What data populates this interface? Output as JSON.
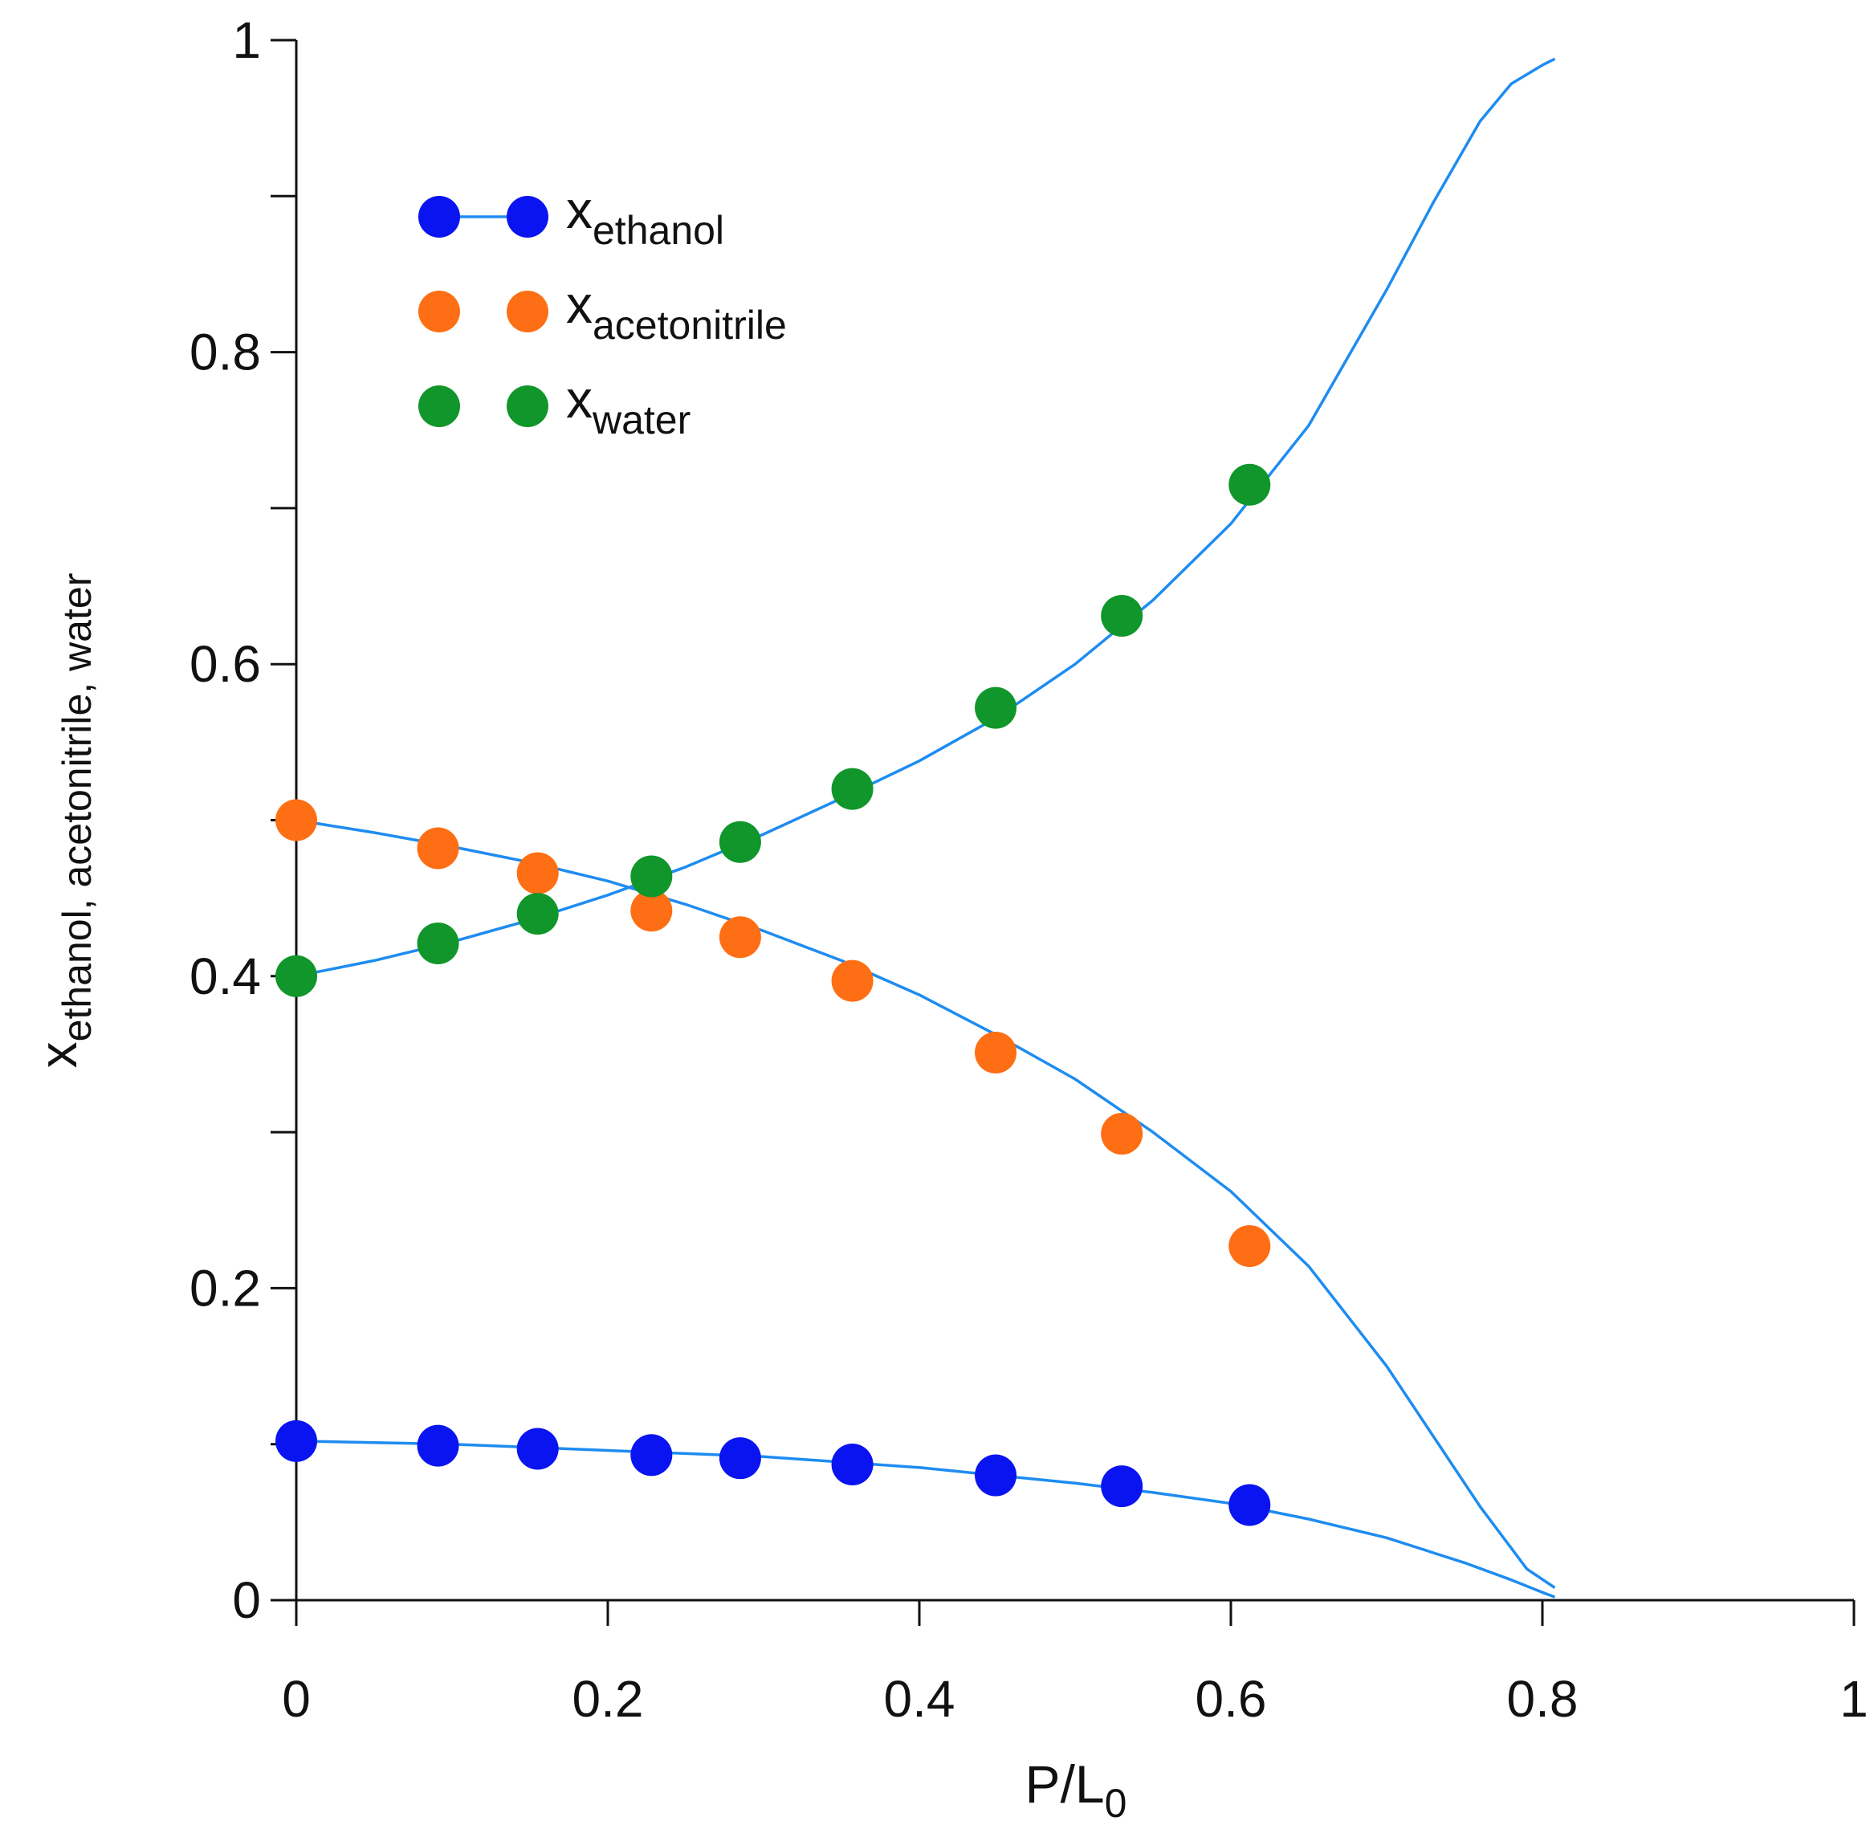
{
  "chart_data": {
    "type": "scatter",
    "title": "",
    "xlabel": {
      "main": "P/L",
      "sub": "0"
    },
    "ylabel": {
      "main": "x",
      "sub": "ethanol, acetonitrile, water"
    },
    "xlim": [
      0,
      1
    ],
    "ylim": [
      0,
      1
    ],
    "x_ticks": [
      0,
      0.2,
      0.4,
      0.6,
      0.8,
      1
    ],
    "x_tick_labels": [
      "0",
      "0.2",
      "0.4",
      "0.6",
      "0.8",
      "1"
    ],
    "y_ticks": [
      0,
      0.1,
      0.2,
      0.3,
      0.4,
      0.5,
      0.6,
      0.7,
      0.8,
      0.9,
      1
    ],
    "y_tick_labels": [
      "0",
      "",
      "0.2",
      "",
      "0.4",
      "",
      "0.6",
      "",
      "0.8",
      "",
      "1"
    ],
    "grid": false,
    "legend_position": "top-left",
    "series": [
      {
        "name": "ethanol",
        "legend_main": "x",
        "legend_sub": "ethanol",
        "color": "#0a14f0",
        "legend_shows_line": true,
        "x": [
          0,
          0.091,
          0.155,
          0.228,
          0.285,
          0.357,
          0.449,
          0.53,
          0.612
        ],
        "y": [
          0.102,
          0.099,
          0.097,
          0.093,
          0.091,
          0.087,
          0.08,
          0.073,
          0.061
        ]
      },
      {
        "name": "acetonitrile",
        "legend_main": "x",
        "legend_sub": "acetonitrile",
        "color": "#fe6e14",
        "legend_shows_line": false,
        "x": [
          0,
          0.091,
          0.155,
          0.228,
          0.285,
          0.357,
          0.449,
          0.53,
          0.612
        ],
        "y": [
          0.5,
          0.482,
          0.466,
          0.442,
          0.425,
          0.397,
          0.351,
          0.299,
          0.227
        ]
      },
      {
        "name": "water",
        "legend_main": "x",
        "legend_sub": "water",
        "color": "#10962a",
        "legend_shows_line": false,
        "x": [
          0,
          0.091,
          0.155,
          0.228,
          0.285,
          0.357,
          0.449,
          0.53,
          0.612
        ],
        "y": [
          0.4,
          0.421,
          0.44,
          0.464,
          0.486,
          0.52,
          0.572,
          0.631,
          0.715
        ]
      }
    ],
    "fit_curves": [
      {
        "name": "ethanol-fit",
        "color": "#1e8cf0",
        "x": [
          0,
          0.1,
          0.2,
          0.3,
          0.4,
          0.5,
          0.55,
          0.6,
          0.65,
          0.7,
          0.75,
          0.78,
          0.8,
          0.808
        ],
        "y": [
          0.102,
          0.1,
          0.096,
          0.092,
          0.085,
          0.075,
          0.069,
          0.062,
          0.052,
          0.04,
          0.024,
          0.013,
          0.005,
          0.002
        ]
      },
      {
        "name": "acetonitrile-fit",
        "color": "#1e8cf0",
        "x": [
          0,
          0.05,
          0.1,
          0.15,
          0.2,
          0.25,
          0.3,
          0.35,
          0.4,
          0.45,
          0.5,
          0.55,
          0.6,
          0.65,
          0.7,
          0.73,
          0.76,
          0.79,
          0.808
        ],
        "y": [
          0.5,
          0.492,
          0.483,
          0.473,
          0.461,
          0.446,
          0.429,
          0.41,
          0.388,
          0.362,
          0.334,
          0.3,
          0.262,
          0.214,
          0.15,
          0.105,
          0.06,
          0.02,
          0.008
        ]
      },
      {
        "name": "water-fit",
        "color": "#1e8cf0",
        "x": [
          0,
          0.05,
          0.1,
          0.15,
          0.2,
          0.25,
          0.3,
          0.35,
          0.4,
          0.45,
          0.5,
          0.55,
          0.6,
          0.65,
          0.7,
          0.73,
          0.76,
          0.78,
          0.8,
          0.808
        ],
        "y": [
          0.4,
          0.41,
          0.422,
          0.436,
          0.452,
          0.47,
          0.491,
          0.514,
          0.538,
          0.566,
          0.6,
          0.641,
          0.69,
          0.753,
          0.84,
          0.896,
          0.948,
          0.972,
          0.984,
          0.988
        ]
      }
    ]
  }
}
